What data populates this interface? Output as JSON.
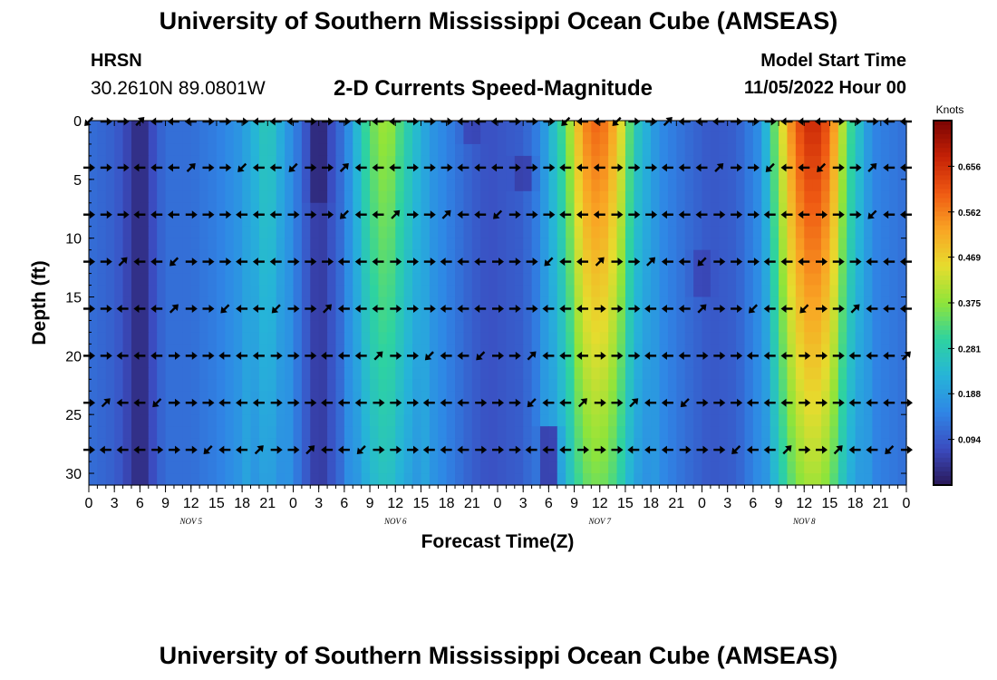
{
  "header": {
    "title": "University of Southern Mississippi Ocean Cube (AMSEAS)",
    "station": "HRSN",
    "coords": "30.2610N  89.0801W",
    "subtitle": "2-D Currents Speed-Magnitude",
    "model_start_label": "Model Start Time",
    "model_start_value": "11/05/2022 Hour 00"
  },
  "footer": {
    "title": "University of Southern Mississippi Ocean Cube (AMSEAS)"
  },
  "chart_data": {
    "type": "heatmap",
    "title": "2-D Currents Speed-Magnitude",
    "xlabel": "Forecast Time(Z)",
    "ylabel": "Depth (ft)",
    "x_hours_range": [
      0,
      96
    ],
    "x_tick_step_hours": 3,
    "x_tick_labels": [
      "0",
      "3",
      "6",
      "9",
      "12",
      "15",
      "18",
      "21",
      "0",
      "3",
      "6",
      "9",
      "12",
      "15",
      "18",
      "21",
      "0",
      "3",
      "6",
      "9",
      "12",
      "15",
      "18",
      "21",
      "0",
      "3",
      "6",
      "9",
      "12",
      "15",
      "18",
      "21",
      "0"
    ],
    "day_labels": [
      {
        "label": "NOV 5",
        "hour": 12
      },
      {
        "label": "NOV 6",
        "hour": 36
      },
      {
        "label": "NOV 7",
        "hour": 60
      },
      {
        "label": "NOV 8",
        "hour": 84
      }
    ],
    "y_range": [
      0,
      31
    ],
    "y_ticks": [
      0,
      5,
      10,
      15,
      20,
      25,
      30
    ],
    "colorbar": {
      "units": "Knots",
      "range": [
        0,
        0.75
      ],
      "ticks": [
        "0.656",
        "0.562",
        "0.469",
        "0.375",
        "0.281",
        "0.188",
        "0.094"
      ],
      "tick_values": [
        0.656,
        0.562,
        0.469,
        0.375,
        0.281,
        0.188,
        0.094
      ],
      "colors": [
        "#2a1859",
        "#3b4cc0",
        "#2f86e6",
        "#26b4d8",
        "#2ed3a0",
        "#8fe43a",
        "#e6dc2e",
        "#f9a524",
        "#ef5a13",
        "#c52106",
        "#7a0403"
      ]
    },
    "speed_profile": [
      {
        "hour": 0,
        "speed": 0.12
      },
      {
        "hour": 3,
        "speed": 0.1
      },
      {
        "hour": 6,
        "speed": 0.04
      },
      {
        "hour": 9,
        "speed": 0.12
      },
      {
        "hour": 12,
        "speed": 0.12
      },
      {
        "hour": 15,
        "speed": 0.14
      },
      {
        "hour": 18,
        "speed": 0.18
      },
      {
        "hour": 21,
        "speed": 0.28
      },
      {
        "hour": 24,
        "speed": 0.15
      },
      {
        "hour": 27,
        "speed": 0.04
      },
      {
        "hour": 30,
        "speed": 0.13
      },
      {
        "hour": 33,
        "speed": 0.34
      },
      {
        "hour": 35,
        "speed": 0.4
      },
      {
        "hour": 37,
        "speed": 0.3
      },
      {
        "hour": 40,
        "speed": 0.18
      },
      {
        "hour": 43,
        "speed": 0.13
      },
      {
        "hour": 45,
        "speed": 0.1
      },
      {
        "hour": 47,
        "speed": 0.08
      },
      {
        "hour": 49,
        "speed": 0.09
      },
      {
        "hour": 51,
        "speed": 0.1
      },
      {
        "hour": 53,
        "speed": 0.15
      },
      {
        "hour": 56,
        "speed": 0.34
      },
      {
        "hour": 58,
        "speed": 0.55
      },
      {
        "hour": 60,
        "speed": 0.6
      },
      {
        "hour": 62,
        "speed": 0.5
      },
      {
        "hour": 64,
        "speed": 0.28
      },
      {
        "hour": 67,
        "speed": 0.16
      },
      {
        "hour": 70,
        "speed": 0.12
      },
      {
        "hour": 73,
        "speed": 0.09
      },
      {
        "hour": 76,
        "speed": 0.1
      },
      {
        "hour": 79,
        "speed": 0.17
      },
      {
        "hour": 81,
        "speed": 0.4
      },
      {
        "hour": 83,
        "speed": 0.6
      },
      {
        "hour": 85,
        "speed": 0.68
      },
      {
        "hour": 87,
        "speed": 0.6
      },
      {
        "hour": 89,
        "speed": 0.34
      },
      {
        "hour": 92,
        "speed": 0.15
      },
      {
        "hour": 96,
        "speed": 0.12
      }
    ],
    "dark_streaks": [
      {
        "hour": 6,
        "depth_from": 0,
        "depth_to": 31,
        "speed": 0.03
      },
      {
        "hour": 27,
        "depth_from": 0,
        "depth_to": 7,
        "speed": 0.02
      },
      {
        "hour": 45,
        "depth_from": 0,
        "depth_to": 2,
        "speed": 0.06
      },
      {
        "hour": 51,
        "depth_from": 3,
        "depth_to": 6,
        "speed": 0.05
      },
      {
        "hour": 72,
        "depth_from": 11,
        "depth_to": 15,
        "speed": 0.06
      },
      {
        "hour": 54,
        "depth_from": 26,
        "depth_to": 31,
        "speed": 0.03
      }
    ],
    "arrow_depths": [
      0,
      4,
      8,
      12,
      16,
      20,
      24,
      28
    ],
    "arrow_hours": [
      0,
      2,
      4,
      6,
      8,
      10,
      12,
      14,
      16,
      18,
      20,
      22,
      24,
      26,
      28,
      30,
      32,
      34,
      36,
      38,
      40,
      42,
      44,
      46,
      48,
      50,
      52,
      54,
      56,
      58,
      60,
      62,
      64,
      66,
      68,
      70,
      72,
      74,
      76,
      78,
      80,
      82,
      84,
      86,
      88,
      90,
      92,
      94,
      96
    ]
  }
}
